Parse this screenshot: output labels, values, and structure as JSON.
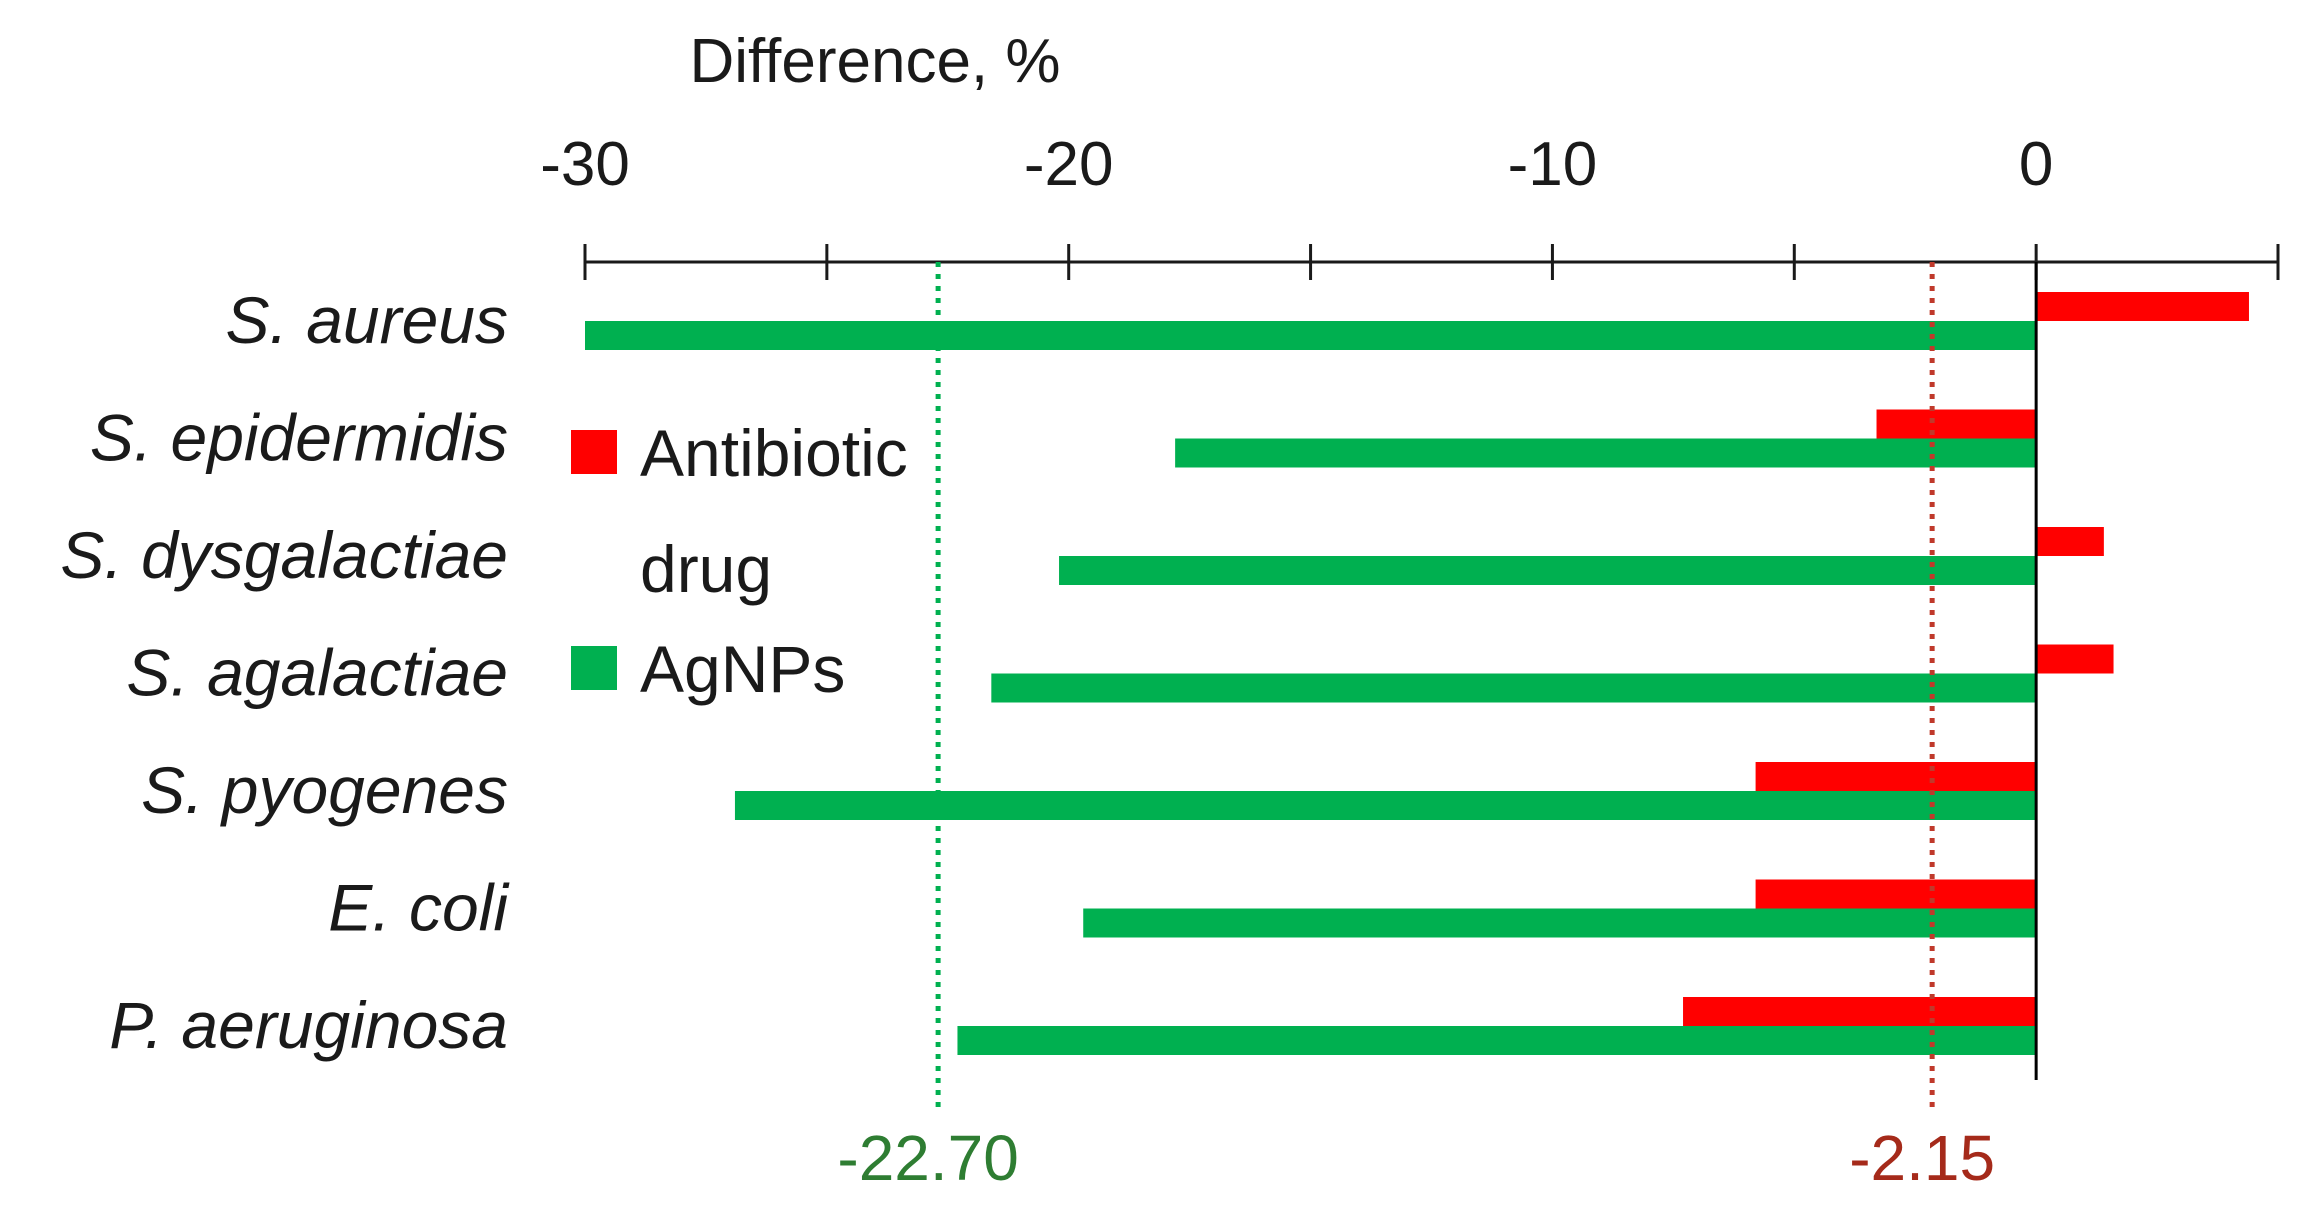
{
  "chart_data": {
    "type": "bar",
    "orientation": "horizontal",
    "xlabel": "Difference, %",
    "xlim": [
      -30,
      5
    ],
    "x_ticks": [
      -30,
      -20,
      -10,
      0
    ],
    "x_tick_labels": [
      "-30",
      "-20",
      "-10",
      "0"
    ],
    "x_minor_step": 5,
    "axis_position": "top",
    "categories": [
      "S. aureus",
      "S. epidermidis",
      "S. dysgalactiae",
      "S. agalactiae",
      "S. pyogenes",
      "E. coli",
      "P. aeruginosa"
    ],
    "series": [
      {
        "name": "Antibiotic drug",
        "legend_lines": [
          "Antibiotic",
          "drug"
        ],
        "color": "#ff0000",
        "values": [
          4.4,
          -3.3,
          1.4,
          1.6,
          -5.8,
          -5.8,
          -7.3
        ]
      },
      {
        "name": "AgNPs",
        "legend_lines": [
          "AgNPs"
        ],
        "color": "#00b050",
        "values": [
          -30.0,
          -17.8,
          -20.2,
          -21.6,
          -26.9,
          -19.7,
          -22.3
        ]
      }
    ],
    "reference_lines": [
      {
        "value": -22.7,
        "label": "-22.70",
        "color": "#00b050",
        "text_color": "#2e7d32",
        "style": "dotted"
      },
      {
        "value": -2.15,
        "label": "-2.15",
        "color": "#c0392b",
        "text_color": "#a52a1a",
        "style": "dotted"
      }
    ],
    "legend_position": "left-inside"
  }
}
